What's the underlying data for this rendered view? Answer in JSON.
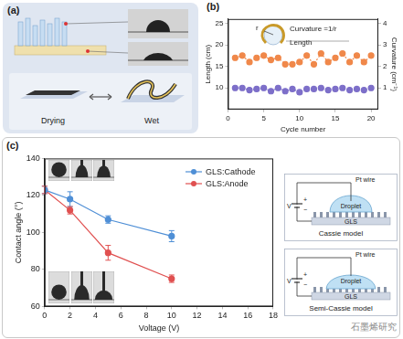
{
  "panel_labels": [
    "(a)",
    "(b)",
    "(c)"
  ],
  "diagram_a": {
    "labels": [
      "Drying",
      "Wet"
    ]
  },
  "chart_data": [
    {
      "type": "scatter",
      "x_label": "Cycle number",
      "y_label": "Length (cm)",
      "y2_label": "Curvature (cm⁻¹)",
      "annotations": [
        "r",
        "Curvature =1/r",
        "Length"
      ],
      "xlim": [
        0,
        21
      ],
      "xticks": [
        0,
        5,
        10,
        15,
        20
      ],
      "ylim": [
        5,
        26
      ],
      "yticks": [
        10,
        15,
        20,
        25
      ],
      "y2lim": [
        0,
        4.2
      ],
      "y2ticks": [
        1,
        2,
        3,
        4
      ],
      "grid": false,
      "x": [
        1,
        2,
        3,
        4,
        5,
        6,
        7,
        8,
        9,
        10,
        11,
        12,
        13,
        14,
        15,
        16,
        17,
        18,
        19,
        20
      ],
      "series": [
        {
          "color": "#f0884a",
          "marker": "circle",
          "line_style": "dotted",
          "values": [
            17,
            17.5,
            16,
            17,
            17.5,
            16.5,
            17,
            15.5,
            15.5,
            16,
            17.5,
            15.5,
            18,
            16,
            17,
            18,
            16,
            17.5,
            16,
            17.5
          ]
        },
        {
          "color": "#7d6fc9",
          "marker": "circle",
          "line_style": "dotted",
          "axis": "y2",
          "values": [
            1.0,
            1.0,
            0.9,
            0.95,
            1.0,
            0.85,
            1.0,
            0.85,
            0.95,
            0.8,
            0.95,
            0.95,
            1.0,
            0.9,
            0.95,
            1.0,
            0.9,
            0.95,
            0.9,
            1.0
          ]
        }
      ]
    },
    {
      "type": "line",
      "x_label": "Voltage (V)",
      "y_label": "Contact angle (°)",
      "xlim": [
        0,
        18
      ],
      "xticks": [
        0,
        2,
        4,
        6,
        8,
        10,
        12,
        14,
        16,
        18
      ],
      "ylim": [
        60,
        140
      ],
      "yticks": [
        60,
        80,
        100,
        120,
        140
      ],
      "grid": false,
      "legend": "upper right",
      "x": [
        0,
        2,
        5,
        10
      ],
      "series": [
        {
          "name": "GLS:Cathode",
          "color": "#4f8fd6",
          "marker": "circle",
          "line_style": "solid",
          "values": [
            123,
            118,
            107,
            98
          ],
          "errors": [
            2,
            4,
            2,
            3
          ]
        },
        {
          "name": "GLS:Anode",
          "color": "#e05050",
          "marker": "circle",
          "line_style": "solid",
          "values": [
            123,
            112,
            89,
            75
          ],
          "errors": [
            2,
            2,
            4,
            2
          ]
        }
      ]
    }
  ],
  "insets_c": [
    {
      "wire": "Pt wire",
      "droplet": "Droplet",
      "substrate": "GLS",
      "model": "Cassie model",
      "voltage": "V",
      "plus": "+",
      "minus": "−"
    },
    {
      "wire": "Pt wire",
      "droplet": "Droplet",
      "substrate": "GLS",
      "model": "Semi-Cassie model",
      "voltage": "V",
      "plus": "+",
      "minus": "−"
    }
  ],
  "watermark": "石墨烯研究"
}
